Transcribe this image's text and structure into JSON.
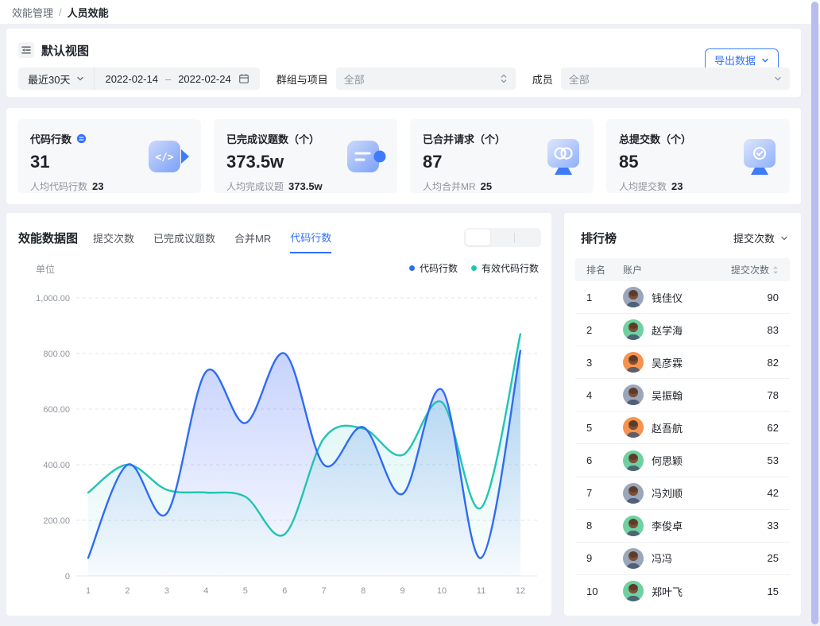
{
  "breadcrumb": {
    "parent": "效能管理",
    "separator": "/",
    "current": "人员效能"
  },
  "view_header": {
    "title": "默认视图",
    "export_label": "导出数据"
  },
  "filters": {
    "range_preset": "最近30天",
    "date_start": "2022-02-14",
    "date_dash": "–",
    "date_end": "2022-02-24",
    "group_label": "群组与项目",
    "group_value": "全部",
    "member_label": "成员",
    "member_value": "全部"
  },
  "stat_cards": [
    {
      "title": "代码行数",
      "value": "31",
      "sub_label": "人均代码行数",
      "sub_value": "23",
      "icon": "code-lines-icon"
    },
    {
      "title": "已完成议题数（个）",
      "value": "373.5w",
      "sub_label": "人均完成议题",
      "sub_value": "373.5w",
      "icon": "completed-issues-icon"
    },
    {
      "title": "已合并请求（个）",
      "value": "87",
      "sub_label": "人均合并MR",
      "sub_value": "25",
      "icon": "merged-requests-icon"
    },
    {
      "title": "总提交数（个）",
      "value": "85",
      "sub_label": "人均提交数",
      "sub_value": "23",
      "icon": "total-commits-icon"
    }
  ],
  "chart": {
    "title": "效能数据图",
    "tabs": [
      "提交次数",
      "已完成议题数",
      "合并MR",
      "代码行数"
    ],
    "active_tab": "代码行数",
    "unit_label": "单位",
    "legend": [
      {
        "label": "代码行数",
        "color": "#2f6bf3"
      },
      {
        "label": "有效代码行数",
        "color": "#23c3b4"
      }
    ]
  },
  "chart_data": {
    "type": "line",
    "x": [
      1,
      2,
      3,
      4,
      5,
      6,
      7,
      8,
      9,
      10,
      11,
      12
    ],
    "series": [
      {
        "name": "代码行数",
        "color": "#2f6bf3",
        "values": [
          65,
          400,
          225,
          735,
          550,
          800,
          400,
          535,
          295,
          670,
          65,
          810
        ]
      },
      {
        "name": "有效代码行数",
        "color": "#23c3b4",
        "values": [
          300,
          400,
          310,
          300,
          285,
          150,
          495,
          530,
          435,
          625,
          245,
          870
        ]
      }
    ],
    "ylabel": "单位",
    "ylim": [
      0,
      1000
    ],
    "ytick_values": [
      0,
      200,
      400,
      600,
      800,
      1000
    ],
    "yticks": [
      "0",
      "200.00",
      "400.00",
      "600.00",
      "800.00",
      "1,000.00"
    ],
    "grid": "horizontal-dashed",
    "legend_position": "top-right"
  },
  "leaderboard": {
    "title": "排行榜",
    "metric_selector": "提交次数",
    "columns": {
      "rank": "排名",
      "account": "账户",
      "metric": "提交次数"
    },
    "rows": [
      {
        "rank": "1",
        "name": "钱佳仪",
        "value": "90",
        "avatar_color": "#9aa6ba"
      },
      {
        "rank": "2",
        "name": "赵学海",
        "value": "83",
        "avatar_color": "#6fd1a1"
      },
      {
        "rank": "3",
        "name": "吴彦霖",
        "value": "82",
        "avatar_color": "#f7934e"
      },
      {
        "rank": "4",
        "name": "吴振翰",
        "value": "78",
        "avatar_color": "#9aa6ba"
      },
      {
        "rank": "5",
        "name": "赵吾航",
        "value": "62",
        "avatar_color": "#f7934e"
      },
      {
        "rank": "6",
        "name": "何思颖",
        "value": "53",
        "avatar_color": "#6fd1a1"
      },
      {
        "rank": "7",
        "name": "冯刘顺",
        "value": "42",
        "avatar_color": "#9aa6ba"
      },
      {
        "rank": "8",
        "name": "李俊卓",
        "value": "33",
        "avatar_color": "#6fd1a1"
      },
      {
        "rank": "9",
        "name": "冯冯",
        "value": "25",
        "avatar_color": "#9aa6ba"
      },
      {
        "rank": "10",
        "name": "郑叶飞",
        "value": "15",
        "avatar_color": "#6fd1a1"
      }
    ]
  },
  "colors": {
    "accent_blue": "#336fff",
    "line_blue": "#2f6bf3",
    "line_teal": "#23c3b4",
    "scrollbar": "#b7bdf0"
  }
}
